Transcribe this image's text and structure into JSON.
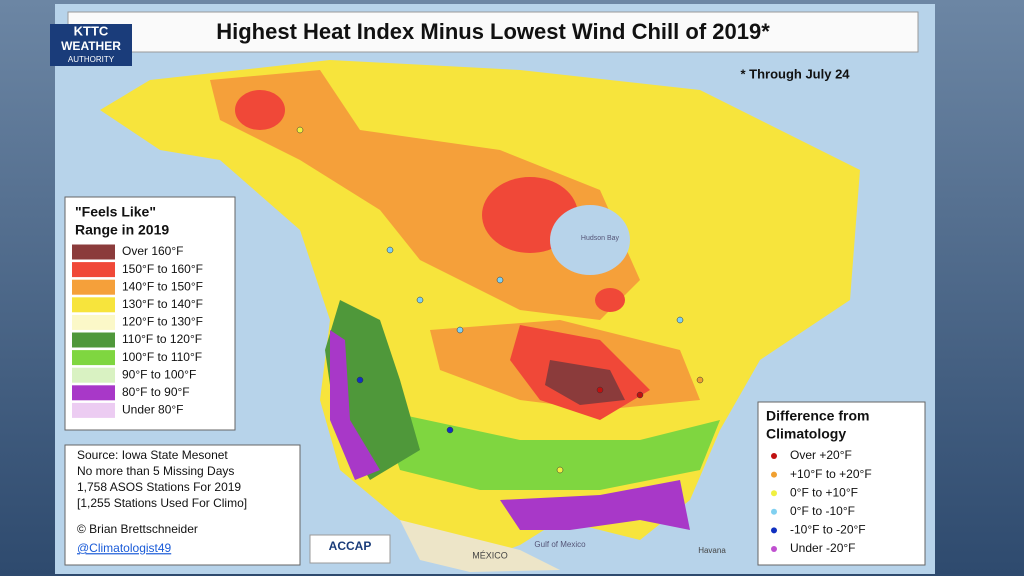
{
  "header": {
    "title": "Highest Heat Index Minus Lowest Wind Chill of 2019*",
    "note": "* Through July 24"
  },
  "logo": {
    "top": "KTTC",
    "middle": "WEATHER",
    "bottom": "AUTHORITY"
  },
  "legend": {
    "title_lines": [
      "\"Feels Like\"",
      "Range in 2019"
    ],
    "items": [
      {
        "label": "Over 160°F",
        "color": "#8b3b3b"
      },
      {
        "label": "150°F to 160°F",
        "color": "#f04838"
      },
      {
        "label": "140°F to 150°F",
        "color": "#f5a03a"
      },
      {
        "label": "130°F to 140°F",
        "color": "#f7e43c"
      },
      {
        "label": "120°F to 130°F",
        "color": "#fbf8c8"
      },
      {
        "label": "110°F to 120°F",
        "color": "#4f983a"
      },
      {
        "label": "100°F to 110°F",
        "color": "#7fd640"
      },
      {
        "label": "90°F to 100°F",
        "color": "#d9f2c2"
      },
      {
        "label": "80°F to 90°F",
        "color": "#a838c8"
      },
      {
        "label": "Under 80°F",
        "color": "#ecccf2"
      }
    ]
  },
  "source": {
    "lines": [
      "Source: Iowa State Mesonet",
      "No more than 5 Missing Days",
      "1,758 ASOS Stations For 2019",
      "[1,255 Stations Used For Climo]"
    ],
    "credit": "© Brian Brettschneider",
    "handle": "@Climatologist49"
  },
  "difference": {
    "title_lines": [
      "Difference from",
      "Climatology"
    ],
    "items": [
      {
        "label": "Over +20°F",
        "color": "#c01010"
      },
      {
        "label": "+10°F to +20°F",
        "color": "#f0a030"
      },
      {
        "label": "0°F to +10°F",
        "color": "#f0f040"
      },
      {
        "label": "0°F to -10°F",
        "color": "#80d0f0"
      },
      {
        "label": "-10°F to -20°F",
        "color": "#1030c0"
      },
      {
        "label": "Under -20°F",
        "color": "#c050d0"
      }
    ]
  },
  "accap": "ACCAP",
  "map_labels": [
    "Hudson Bay",
    "Gulf of Mexico",
    "MÉXICO",
    "Havana"
  ]
}
